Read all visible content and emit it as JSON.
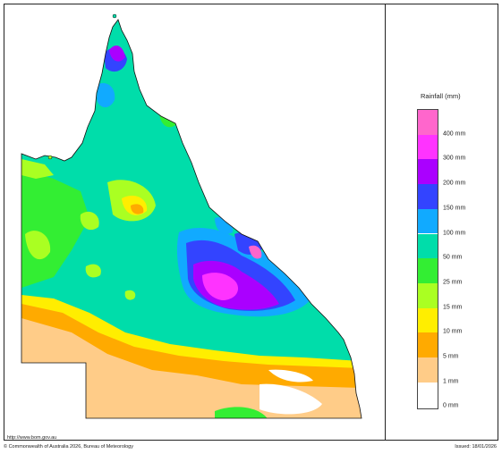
{
  "legend": {
    "title": "Rainfall (mm)",
    "items": [
      {
        "label": "400 mm",
        "color": "#ff66cc"
      },
      {
        "label": "300 mm",
        "color": "#ff33ff"
      },
      {
        "label": "200 mm",
        "color": "#aa00ff"
      },
      {
        "label": "150 mm",
        "color": "#3344ff"
      },
      {
        "label": "100 mm",
        "color": "#11aaff"
      },
      {
        "label": "50 mm",
        "color": "#00ddaa"
      },
      {
        "label": "25 mm",
        "color": "#33ee33"
      },
      {
        "label": "15 mm",
        "color": "#aaff22"
      },
      {
        "label": "10 mm",
        "color": "#ffee00"
      },
      {
        "label": "5 mm",
        "color": "#ffaa00"
      },
      {
        "label": "1 mm",
        "color": "#ffcc88"
      },
      {
        "label": "0 mm",
        "color": "#ffffff"
      }
    ]
  },
  "footer": {
    "url": "http://www.bom.gov.au",
    "copyright": "© Commonwealth of Australia 2026, Bureau of Meteorology",
    "issued": "Issued: 18/01/2026"
  }
}
